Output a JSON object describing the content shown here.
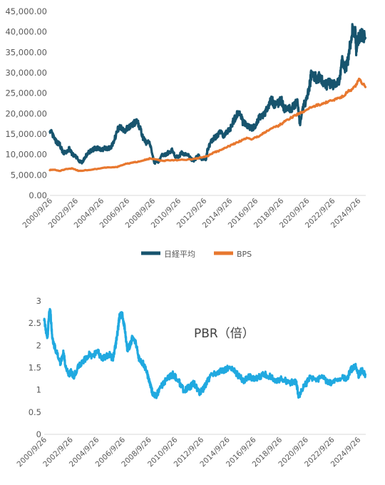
{
  "colors": {
    "nikkei": "#17546e",
    "bps": "#e8782f",
    "pbr": "#20a9e0",
    "axis_text": "#595959",
    "axis_line": "#d9d9d9"
  },
  "x_tick_labels": [
    "2000/9/26",
    "2002/9/26",
    "2004/9/26",
    "2006/9/26",
    "2008/9/26",
    "2010/9/26",
    "2012/9/26",
    "2014/9/26",
    "2016/9/26",
    "2018/9/26",
    "2020/9/26",
    "2022/9/26",
    "2024/9/26"
  ],
  "chart_data": [
    {
      "type": "line",
      "x_range": [
        "2000/9/26",
        "2025/4/30"
      ],
      "ylim": [
        0,
        45000
      ],
      "yticks": [
        0,
        5000,
        10000,
        15000,
        20000,
        25000,
        30000,
        35000,
        40000,
        45000
      ],
      "ytick_labels": [
        "0.00",
        "5,000.00",
        "10,000.00",
        "15,000.00",
        "20,000.00",
        "25,000.00",
        "30,000.00",
        "35,000.00",
        "40,000.00",
        "45,000.00"
      ],
      "legend_position": "bottom",
      "grid": false,
      "series": [
        {
          "name": "日経平均",
          "x": [
            2000.74,
            2001.0,
            2001.25,
            2001.5,
            2001.75,
            2002.0,
            2002.25,
            2002.5,
            2002.75,
            2003.0,
            2003.25,
            2003.5,
            2003.75,
            2004.0,
            2004.25,
            2004.5,
            2004.75,
            2005.0,
            2005.25,
            2005.5,
            2005.75,
            2006.0,
            2006.25,
            2006.5,
            2006.75,
            2007.0,
            2007.25,
            2007.5,
            2007.75,
            2008.0,
            2008.25,
            2008.5,
            2008.75,
            2008.9,
            2009.0,
            2009.2,
            2009.5,
            2009.75,
            2010.0,
            2010.25,
            2010.5,
            2010.75,
            2011.0,
            2011.25,
            2011.5,
            2011.75,
            2012.0,
            2012.25,
            2012.5,
            2012.9,
            2013.0,
            2013.25,
            2013.5,
            2013.75,
            2014.0,
            2014.25,
            2014.5,
            2014.75,
            2015.0,
            2015.25,
            2015.5,
            2015.75,
            2016.0,
            2016.25,
            2016.5,
            2016.75,
            2017.0,
            2017.25,
            2017.5,
            2017.75,
            2018.0,
            2018.25,
            2018.5,
            2018.75,
            2019.0,
            2019.25,
            2019.5,
            2019.75,
            2020.0,
            2020.2,
            2020.5,
            2020.75,
            2021.0,
            2021.1,
            2021.5,
            2021.75,
            2022.0,
            2022.25,
            2022.5,
            2022.75,
            2023.0,
            2023.25,
            2023.5,
            2023.75,
            2024.0,
            2024.25,
            2024.5,
            2024.6,
            2024.75,
            2025.0,
            2025.3
          ],
          "values": [
            16000,
            14500,
            13000,
            12500,
            10500,
            10500,
            11500,
            10000,
            9500,
            8500,
            8000,
            9500,
            10500,
            11000,
            11500,
            11500,
            11000,
            11500,
            11500,
            11800,
            13500,
            16000,
            17000,
            15500,
            16500,
            17000,
            17500,
            18200,
            16500,
            14000,
            12800,
            13000,
            9500,
            7800,
            8500,
            8200,
            10000,
            10000,
            10600,
            11000,
            9500,
            9300,
            10500,
            10000,
            9900,
            8800,
            8600,
            9800,
            9000,
            9000,
            11000,
            13000,
            14000,
            14500,
            15500,
            14500,
            15500,
            16000,
            18000,
            19500,
            20500,
            18000,
            17500,
            16800,
            16500,
            17000,
            19000,
            19500,
            20000,
            22000,
            23500,
            22000,
            22500,
            23500,
            21000,
            21500,
            21000,
            22000,
            23000,
            17500,
            22000,
            23500,
            27500,
            30000,
            28500,
            29000,
            28000,
            27000,
            27500,
            27000,
            27000,
            28000,
            33000,
            31000,
            34000,
            40000,
            40500,
            35000,
            38500,
            39000,
            38500
          ]
        },
        {
          "name": "BPS",
          "x": [
            2000.74,
            2001.0,
            2001.5,
            2002.0,
            2002.5,
            2003.0,
            2004.0,
            2005.0,
            2006.0,
            2006.5,
            2007.0,
            2007.5,
            2008.0,
            2008.5,
            2009.0,
            2009.5,
            2010.0,
            2011.0,
            2012.0,
            2012.5,
            2013.0,
            2013.5,
            2014.0,
            2014.5,
            2015.0,
            2015.5,
            2016.0,
            2016.5,
            2017.0,
            2017.5,
            2018.0,
            2018.5,
            2019.0,
            2019.5,
            2020.0,
            2020.5,
            2021.0,
            2021.5,
            2022.0,
            2022.5,
            2023.0,
            2023.5,
            2024.0,
            2024.5,
            2024.8,
            2025.3
          ],
          "values": [
            6200,
            6300,
            6000,
            6400,
            6600,
            6000,
            6300,
            6800,
            7000,
            7600,
            7900,
            8200,
            8600,
            9000,
            8800,
            8400,
            8600,
            8700,
            8900,
            9300,
            9600,
            10500,
            11000,
            11800,
            12500,
            13200,
            14000,
            13800,
            14500,
            15500,
            16500,
            17000,
            18000,
            19000,
            19800,
            20500,
            21500,
            22000,
            22500,
            23000,
            23500,
            24200,
            25500,
            26500,
            28500,
            26500
          ]
        }
      ]
    },
    {
      "type": "line",
      "x_range": [
        "2000/9/26",
        "2025/4/30"
      ],
      "ylim": [
        0,
        3
      ],
      "yticks": [
        0,
        0.5,
        1,
        1.5,
        2,
        2.5,
        3
      ],
      "ytick_labels": [
        "0",
        "0.5",
        "1",
        "1.5",
        "2",
        "2.5",
        "3"
      ],
      "grid": false,
      "annotation": "PBR（倍）",
      "series": [
        {
          "x": [
            2000.74,
            2000.9,
            2001.0,
            2001.1,
            2001.2,
            2001.35,
            2001.5,
            2001.75,
            2002.0,
            2002.2,
            2002.4,
            2002.6,
            2002.8,
            2003.0,
            2003.3,
            2003.6,
            2003.9,
            2004.2,
            2004.5,
            2004.8,
            2005.1,
            2005.4,
            2005.7,
            2006.0,
            2006.2,
            2006.35,
            2006.5,
            2006.7,
            2006.9,
            2007.1,
            2007.3,
            2007.5,
            2007.8,
            2008.0,
            2008.3,
            2008.6,
            2008.8,
            2009.0,
            2009.3,
            2009.6,
            2010.0,
            2010.3,
            2010.6,
            2011.0,
            2011.4,
            2011.8,
            2012.2,
            2012.6,
            2012.9,
            2013.2,
            2013.6,
            2014.0,
            2014.5,
            2015.0,
            2015.5,
            2016.0,
            2016.4,
            2016.8,
            2017.2,
            2017.6,
            2018.0,
            2018.5,
            2019.0,
            2019.5,
            2020.0,
            2020.2,
            2020.5,
            2020.8,
            2021.1,
            2021.5,
            2022.0,
            2022.5,
            2023.0,
            2023.5,
            2023.9,
            2024.2,
            2024.4,
            2024.6,
            2024.8,
            2025.0,
            2025.3
          ],
          "values": [
            2.6,
            2.3,
            2.2,
            2.7,
            2.8,
            2.2,
            2.0,
            1.8,
            1.6,
            1.85,
            1.5,
            1.35,
            1.4,
            1.3,
            1.5,
            1.6,
            1.7,
            1.8,
            1.75,
            1.9,
            1.7,
            1.75,
            1.8,
            1.7,
            2.0,
            2.3,
            2.65,
            2.7,
            2.4,
            1.9,
            2.0,
            2.2,
            2.0,
            1.7,
            1.6,
            1.4,
            1.15,
            0.95,
            0.85,
            1.05,
            1.2,
            1.3,
            1.35,
            1.2,
            1.0,
            1.05,
            1.15,
            0.95,
            1.0,
            1.2,
            1.35,
            1.4,
            1.45,
            1.5,
            1.35,
            1.2,
            1.3,
            1.25,
            1.3,
            1.35,
            1.3,
            1.2,
            1.25,
            1.15,
            1.2,
            0.85,
            1.05,
            1.15,
            1.3,
            1.2,
            1.3,
            1.15,
            1.2,
            1.3,
            1.25,
            1.45,
            1.5,
            1.55,
            1.3,
            1.45,
            1.35
          ]
        }
      ]
    }
  ]
}
